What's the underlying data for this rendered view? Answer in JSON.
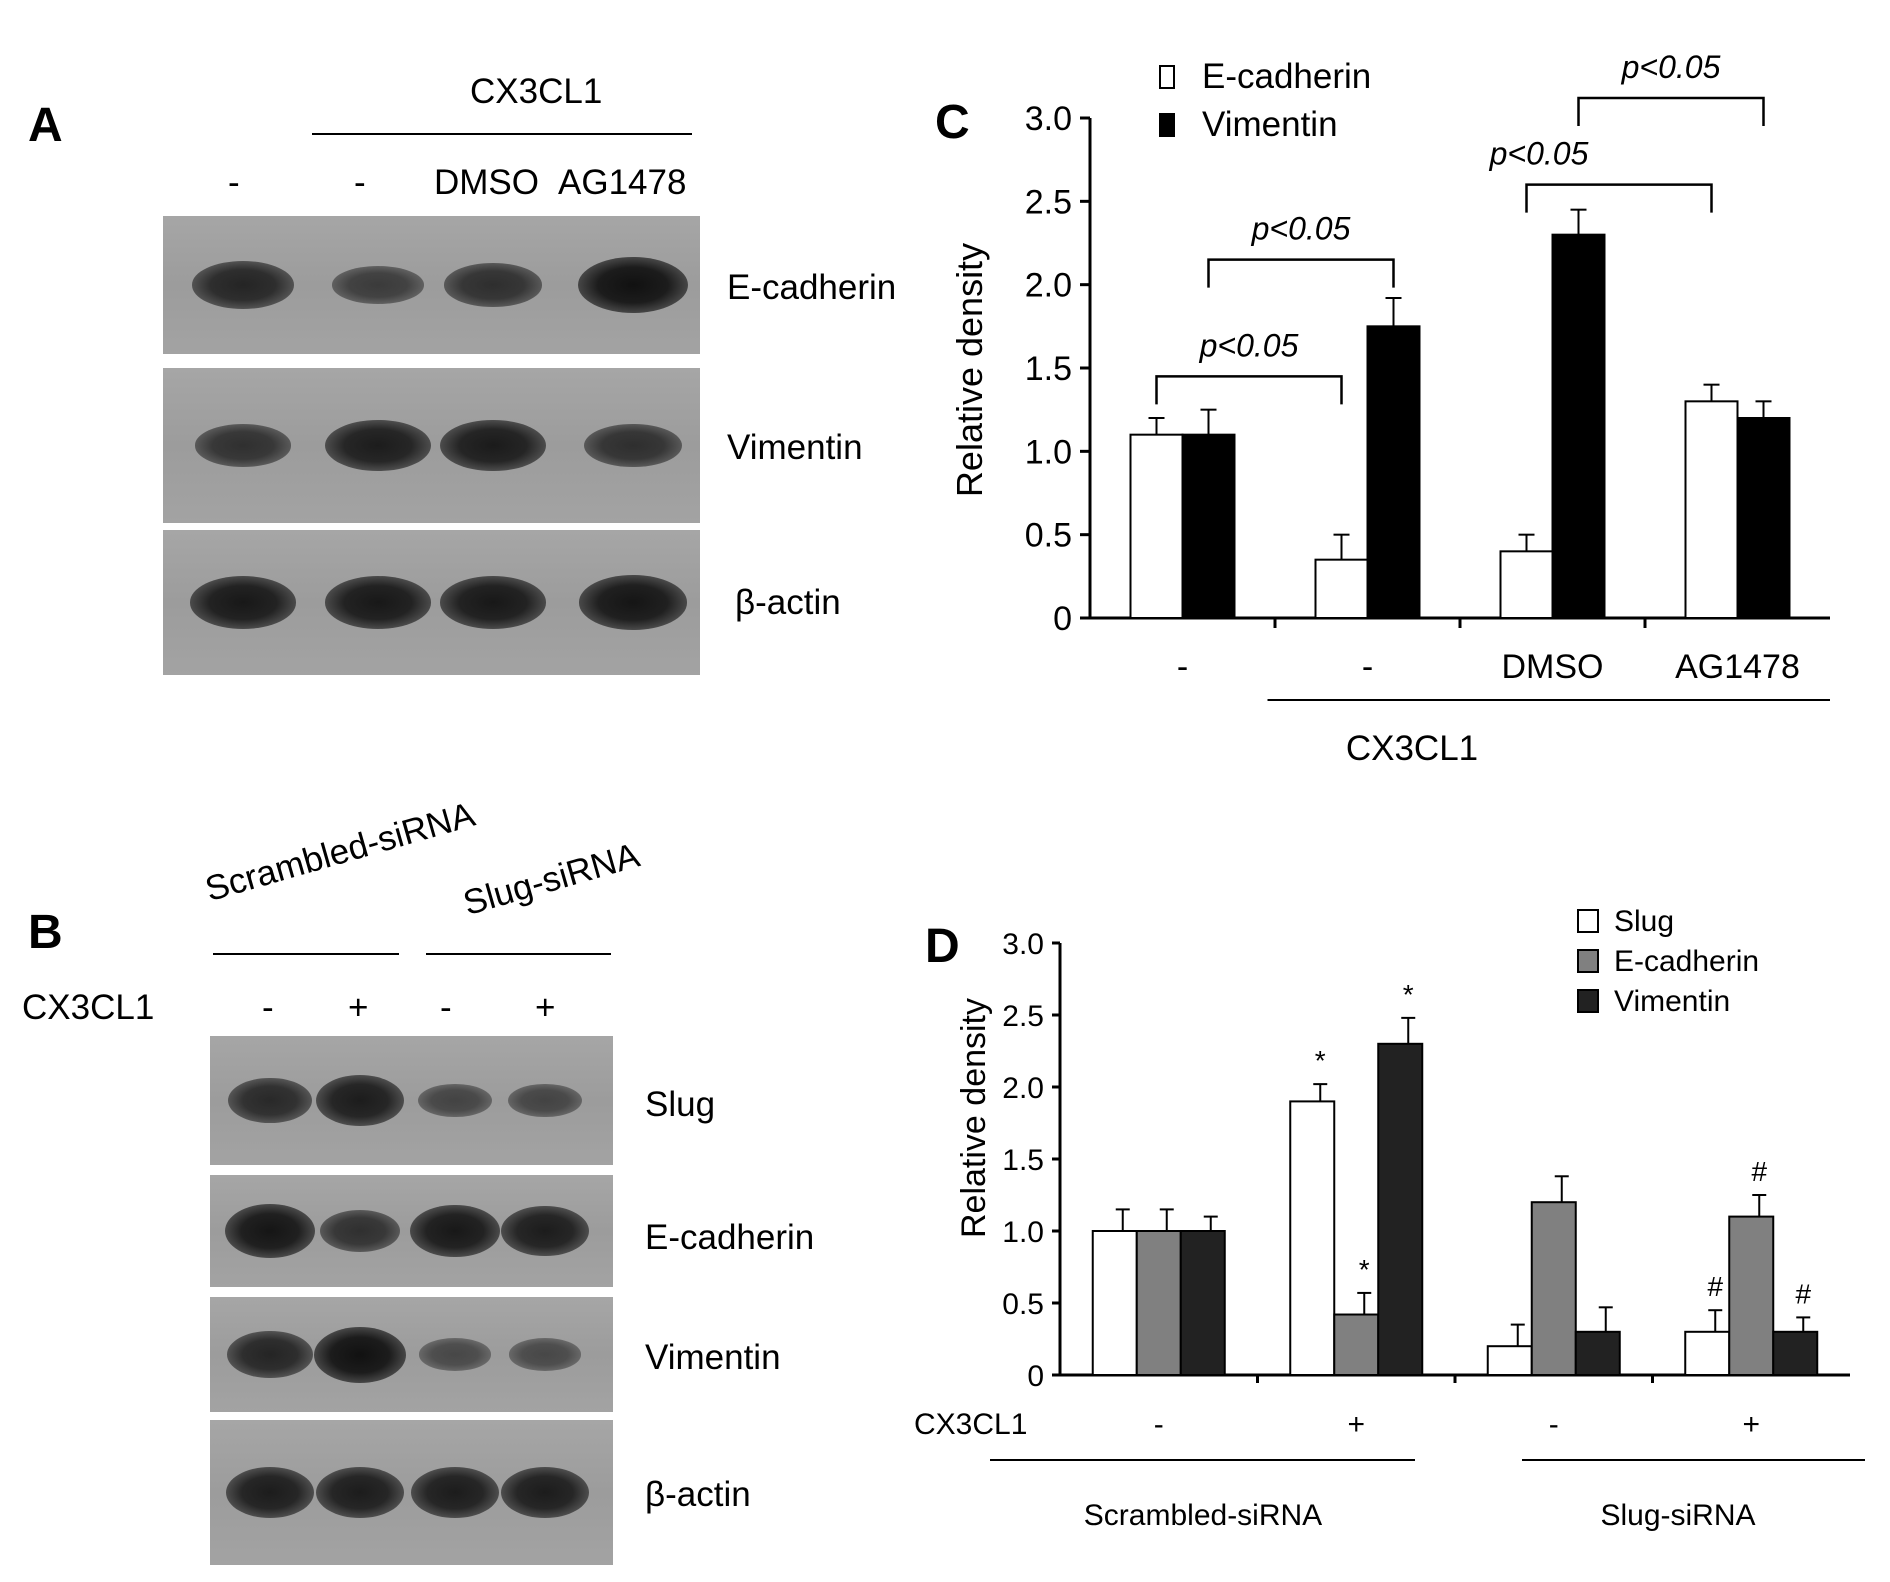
{
  "panel_a": {
    "letter": "A",
    "treatment_header": "CX3CL1",
    "lanes": [
      "-",
      "-",
      "DMSO",
      "AG1478"
    ],
    "rows": [
      {
        "label": "E-cadherin",
        "intensities": [
          0.75,
          0.45,
          0.62,
          1.0
        ]
      },
      {
        "label": "Vimentin",
        "intensities": [
          0.6,
          0.85,
          0.88,
          0.62
        ]
      },
      {
        "label": "β-actin",
        "intensities": [
          0.9,
          0.9,
          0.9,
          0.95
        ]
      }
    ]
  },
  "panel_b": {
    "letter": "B",
    "groups": [
      "Scrambled-siRNA",
      "Slug-siRNA"
    ],
    "treatment_label": "CX3CL1",
    "lanes": [
      "-",
      "+",
      "-",
      "+"
    ],
    "rows": [
      {
        "label": "Slug",
        "intensities": [
          0.7,
          0.85,
          0.35,
          0.35
        ]
      },
      {
        "label": "E-cadherin",
        "intensities": [
          0.95,
          0.6,
          0.9,
          0.85
        ]
      },
      {
        "label": "Vimentin",
        "intensities": [
          0.75,
          1.0,
          0.3,
          0.3
        ]
      },
      {
        "label": "β-actin",
        "intensities": [
          0.85,
          0.85,
          0.85,
          0.85
        ]
      }
    ]
  },
  "chart_data": [
    {
      "panel": "C",
      "type": "bar",
      "ylabel": "Relative density",
      "ylim": [
        0,
        3.0
      ],
      "yticks": [
        "0",
        "0.5",
        "1.0",
        "1.5",
        "2.0",
        "2.5",
        "3.0"
      ],
      "categories": [
        "-",
        "-",
        "DMSO",
        "AG1478"
      ],
      "group_label": "CX3CL1",
      "legend_position": "top-left",
      "series": [
        {
          "name": "E-cadherin",
          "color": "#ffffff",
          "values": [
            1.1,
            0.35,
            0.4,
            1.3
          ],
          "errors": [
            0.1,
            0.15,
            0.1,
            0.1
          ]
        },
        {
          "name": "Vimentin",
          "color": "#000000",
          "values": [
            1.1,
            1.75,
            2.3,
            1.2
          ],
          "errors": [
            0.15,
            0.17,
            0.15,
            0.1
          ]
        }
      ],
      "annotations": [
        "p<0.05",
        "p<0.05",
        "p<0.05",
        "p<0.05"
      ]
    },
    {
      "panel": "D",
      "type": "bar",
      "ylabel": "Relative density",
      "ylim": [
        0,
        3.0
      ],
      "yticks": [
        "0",
        "0.5",
        "1.0",
        "1.5",
        "2.0",
        "2.5",
        "3.0"
      ],
      "treatment_label": "CX3CL1",
      "categories": [
        "-",
        "+",
        "-",
        "+"
      ],
      "groups": [
        "Scrambled-siRNA",
        "Slug-siRNA"
      ],
      "legend_position": "top-right",
      "series": [
        {
          "name": "Slug",
          "color": "#ffffff",
          "values": [
            1.0,
            1.9,
            0.2,
            0.3
          ],
          "errors": [
            0.15,
            0.12,
            0.15,
            0.15
          ],
          "marks": [
            "",
            "*",
            "",
            "#"
          ]
        },
        {
          "name": "E-cadherin",
          "color": "#808080",
          "values": [
            1.0,
            0.42,
            1.2,
            1.1
          ],
          "errors": [
            0.15,
            0.15,
            0.18,
            0.15
          ],
          "marks": [
            "",
            "*",
            "",
            "#"
          ]
        },
        {
          "name": "Vimentin",
          "color": "#222222",
          "values": [
            1.0,
            2.3,
            0.3,
            0.3
          ],
          "errors": [
            0.1,
            0.18,
            0.17,
            0.1
          ],
          "marks": [
            "",
            "*",
            "",
            "#"
          ]
        }
      ]
    }
  ]
}
